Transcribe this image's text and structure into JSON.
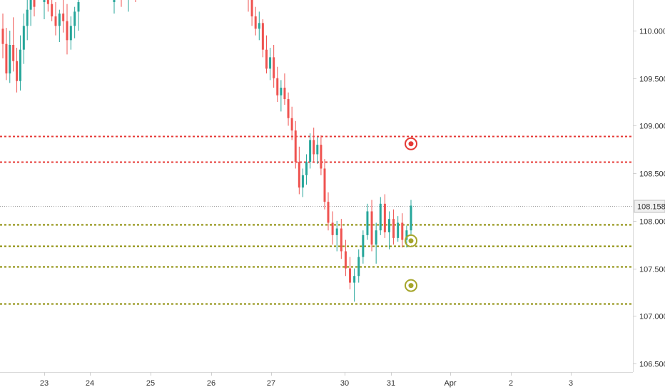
{
  "chart_data": {
    "type": "candlestick",
    "instrument_price_scale": "USD/JPY-like price axis",
    "colors": {
      "up": "#26a69a",
      "down": "#ef5350",
      "resistance_line": "#e53935",
      "support_line": "#8a8a00",
      "marker_red": "#e53935",
      "marker_olive": "#a5a52a",
      "last_price_line": "#9e9e9e"
    },
    "y_axis": {
      "ticks": [
        "110.000",
        "109.500",
        "109.000",
        "108.500",
        "108.000",
        "107.500",
        "107.000",
        "106.500"
      ],
      "tick_values": [
        110.0,
        109.5,
        109.0,
        108.5,
        108.0,
        107.5,
        107.0,
        106.5
      ],
      "range": [
        106.38,
        110.5
      ]
    },
    "x_axis": {
      "ticks": [
        "23",
        "24",
        "25",
        "26",
        "27",
        "30",
        "31",
        "Apr",
        "2",
        "3"
      ]
    },
    "last_price": {
      "label": "108.158",
      "value": 108.158
    },
    "horizontal_levels": [
      {
        "value": 108.89,
        "kind": "resistance"
      },
      {
        "value": 108.62,
        "kind": "resistance"
      },
      {
        "value": 107.96,
        "kind": "support"
      },
      {
        "value": 107.74,
        "kind": "support"
      },
      {
        "value": 107.52,
        "kind": "support"
      },
      {
        "value": 107.13,
        "kind": "support"
      }
    ],
    "markers": [
      {
        "value": 108.81,
        "kind": "target-red"
      },
      {
        "value": 107.79,
        "kind": "target-olive"
      },
      {
        "value": 107.32,
        "kind": "target-olive"
      }
    ],
    "candles": [
      [
        110.02,
        110.18,
        109.71,
        109.86
      ],
      [
        109.86,
        110.03,
        109.48,
        109.55
      ],
      [
        109.55,
        110.0,
        109.45,
        109.85
      ],
      [
        109.85,
        110.14,
        109.57,
        109.68
      ],
      [
        109.68,
        109.82,
        109.35,
        109.47
      ],
      [
        109.47,
        109.95,
        109.37,
        109.8
      ],
      [
        109.8,
        110.18,
        109.65,
        110.05
      ],
      [
        110.05,
        110.35,
        109.9,
        110.22
      ],
      [
        110.22,
        110.45,
        110.05,
        110.38
      ],
      [
        110.38,
        110.5,
        110.15,
        110.25
      ],
      [
        110.3,
        110.45,
        110.12,
        110.38
      ],
      [
        110.38,
        110.5,
        110.2,
        110.28
      ],
      [
        110.28,
        110.42,
        110.1,
        110.15
      ],
      [
        110.15,
        110.3,
        109.95,
        110.05
      ],
      [
        110.05,
        110.22,
        109.88,
        110.18
      ],
      [
        110.18,
        110.35,
        109.98,
        110.1
      ],
      [
        110.1,
        110.28,
        109.75,
        109.9
      ],
      [
        109.9,
        110.15,
        109.8,
        110.05
      ],
      [
        110.05,
        110.25,
        109.92,
        110.2
      ],
      [
        110.2,
        110.4,
        110.0,
        110.3
      ],
      [
        110.3,
        110.45,
        110.18,
        110.4
      ],
      [
        110.4,
        110.5,
        110.25,
        110.35
      ],
      [
        110.35,
        110.48,
        110.2,
        110.42
      ],
      [
        110.42,
        110.5,
        110.3,
        110.38
      ],
      [
        110.45,
        110.5,
        110.2,
        110.35
      ],
      [
        110.35,
        110.42,
        110.05,
        110.15
      ],
      [
        110.15,
        110.25,
        109.95,
        110.02
      ],
      [
        110.02,
        110.2,
        109.9,
        110.08
      ],
      [
        110.08,
        110.12,
        109.72,
        109.8
      ],
      [
        109.8,
        109.95,
        109.55,
        109.6
      ],
      [
        109.6,
        109.82,
        109.48,
        109.72
      ],
      [
        109.72,
        109.85,
        109.4,
        109.5
      ],
      [
        109.5,
        109.62,
        109.25,
        109.32
      ],
      [
        109.32,
        109.48,
        109.15,
        109.4
      ],
      [
        109.4,
        109.55,
        109.22,
        109.28
      ],
      [
        109.28,
        109.35,
        109.0,
        109.08
      ],
      [
        109.08,
        109.2,
        108.85,
        108.95
      ],
      [
        108.95,
        109.05,
        108.55,
        108.62
      ],
      [
        108.62,
        108.78,
        108.28,
        108.35
      ],
      [
        108.35,
        108.55,
        108.25,
        108.48
      ],
      [
        108.48,
        108.7,
        108.38,
        108.62
      ],
      [
        108.62,
        108.92,
        108.55,
        108.85
      ],
      [
        108.85,
        108.98,
        108.62,
        108.7
      ],
      [
        108.7,
        108.88,
        108.6,
        108.8
      ],
      [
        108.8,
        108.9,
        108.48,
        108.55
      ],
      [
        108.55,
        108.65,
        108.12,
        108.2
      ],
      [
        108.2,
        108.3,
        107.9,
        107.98
      ],
      [
        107.98,
        108.1,
        107.75,
        107.85
      ],
      [
        107.85,
        108.0,
        107.68,
        107.92
      ],
      [
        107.92,
        108.02,
        107.6,
        107.68
      ],
      [
        107.68,
        107.8,
        107.42,
        107.5
      ],
      [
        107.5,
        107.62,
        107.28,
        107.35
      ],
      [
        107.35,
        107.5,
        107.15,
        107.42
      ],
      [
        107.42,
        107.7,
        107.35,
        107.62
      ],
      [
        107.62,
        107.9,
        107.55,
        107.85
      ],
      [
        107.85,
        108.18,
        107.8,
        108.1
      ],
      [
        108.1,
        108.22,
        107.68,
        107.75
      ],
      [
        107.75,
        107.98,
        107.55,
        107.9
      ],
      [
        107.9,
        108.25,
        107.85,
        108.18
      ],
      [
        108.18,
        108.28,
        107.82,
        107.88
      ],
      [
        107.88,
        108.1,
        107.7,
        108.02
      ],
      [
        108.02,
        108.12,
        107.75,
        107.82
      ],
      [
        107.82,
        108.05,
        107.78,
        107.98
      ],
      [
        107.98,
        108.08,
        107.72,
        107.8
      ],
      [
        107.8,
        107.95,
        107.72,
        107.9
      ],
      [
        107.9,
        108.22,
        107.85,
        108.16
      ]
    ]
  }
}
